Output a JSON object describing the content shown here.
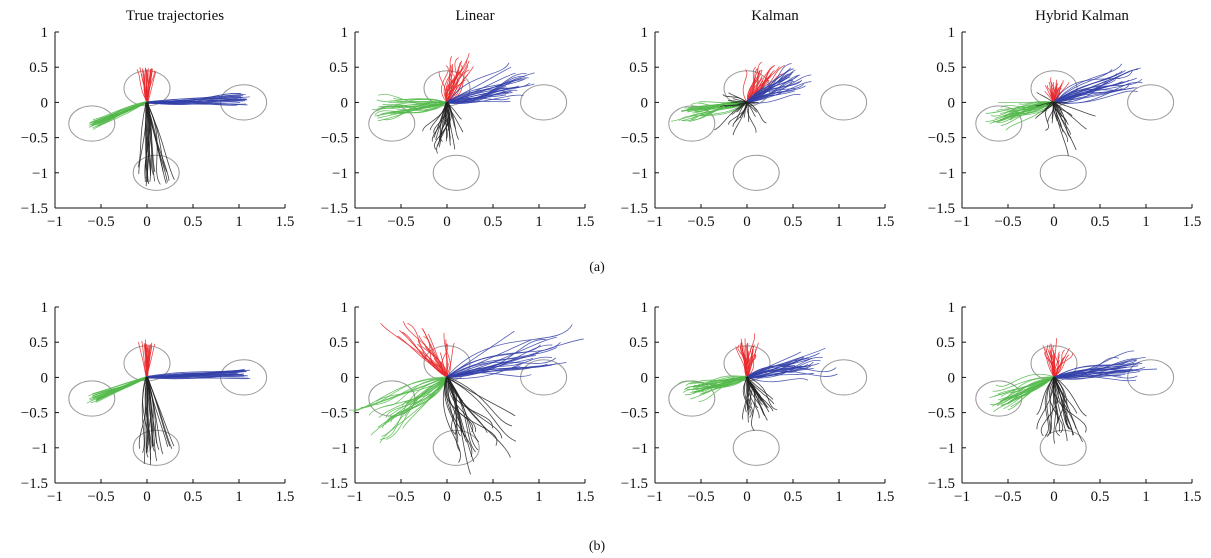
{
  "figure": {
    "row_labels": [
      "(a)",
      "(b)"
    ]
  },
  "chart_data": [
    {
      "type": "line",
      "row": "(a)",
      "title": "True trajectories",
      "style": "true",
      "xlim": [
        -1,
        1.5
      ],
      "ylim": [
        -1.5,
        1
      ],
      "xticks": [
        "−1",
        "−0.5",
        "0",
        "0.5",
        "1",
        "1.5"
      ],
      "yticks": [
        "1",
        "0.5",
        "0",
        "−0.5",
        "−1",
        "−1.5"
      ],
      "targets": [
        {
          "x": 0,
          "y": 0.2
        },
        {
          "x": 1.05,
          "y": 0
        },
        {
          "x": -0.6,
          "y": -0.3
        },
        {
          "x": 0.1,
          "y": -1
        }
      ],
      "target_radius": 0.25,
      "series": [
        {
          "color": "#e8282b",
          "end": [
            0,
            0.45
          ],
          "spread": 0.12
        },
        {
          "color": "#3340a8",
          "end": [
            1.05,
            0.05
          ],
          "spread": 0.12
        },
        {
          "color": "#52b84a",
          "end": [
            -0.6,
            -0.3
          ],
          "spread": 0.1
        },
        {
          "color": "#222222",
          "end": [
            0.1,
            -1.05
          ],
          "spread": 0.25
        }
      ]
    },
    {
      "type": "line",
      "row": "(a)",
      "title": "Linear",
      "style": "noisy",
      "xlim": [
        -1,
        1.5
      ],
      "ylim": [
        -1.5,
        1
      ],
      "xticks": [
        "−1",
        "−0.5",
        "0",
        "0.5",
        "1",
        "1.5"
      ],
      "yticks": [
        "1",
        "0.5",
        "0",
        "−0.5",
        "−1",
        "−1.5"
      ],
      "targets": [
        {
          "x": 0,
          "y": 0.2
        },
        {
          "x": 1.05,
          "y": 0
        },
        {
          "x": -0.6,
          "y": -0.3
        },
        {
          "x": 0.1,
          "y": -1
        }
      ],
      "target_radius": 0.25,
      "series": [
        {
          "color": "#e8282b",
          "end": [
            0.1,
            0.5
          ],
          "spread": 0.25
        },
        {
          "color": "#3340a8",
          "end": [
            0.8,
            0.25
          ],
          "spread": 0.35
        },
        {
          "color": "#52b84a",
          "end": [
            -0.7,
            -0.1
          ],
          "spread": 0.25
        },
        {
          "color": "#222222",
          "end": [
            0.0,
            -0.5
          ],
          "spread": 0.35
        }
      ]
    },
    {
      "type": "line",
      "row": "(a)",
      "title": "Kalman",
      "style": "noisy",
      "xlim": [
        -1,
        1.5
      ],
      "ylim": [
        -1.5,
        1
      ],
      "xticks": [
        "−1",
        "−0.5",
        "0",
        "0.5",
        "1",
        "1.5"
      ],
      "yticks": [
        "1",
        "0.5",
        "0",
        "−0.5",
        "−1",
        "−1.5"
      ],
      "targets": [
        {
          "x": 0,
          "y": 0.2
        },
        {
          "x": 1.05,
          "y": 0
        },
        {
          "x": -0.6,
          "y": -0.3
        },
        {
          "x": 0.1,
          "y": -1
        }
      ],
      "target_radius": 0.25,
      "series": [
        {
          "color": "#e8282b",
          "end": [
            0.2,
            0.45
          ],
          "spread": 0.25
        },
        {
          "color": "#3340a8",
          "end": [
            0.55,
            0.35
          ],
          "spread": 0.3
        },
        {
          "color": "#52b84a",
          "end": [
            -0.6,
            -0.15
          ],
          "spread": 0.25
        },
        {
          "color": "#222222",
          "end": [
            -0.1,
            -0.15
          ],
          "spread": 0.45
        }
      ]
    },
    {
      "type": "line",
      "row": "(a)",
      "title": "Hybrid Kalman",
      "style": "noisy",
      "xlim": [
        -1,
        1.5
      ],
      "ylim": [
        -1.5,
        1
      ],
      "xticks": [
        "−1",
        "−0.5",
        "0",
        "0.5",
        "1",
        "1.5"
      ],
      "yticks": [
        "1",
        "0.5",
        "0",
        "−0.5",
        "−1",
        "−1.5"
      ],
      "targets": [
        {
          "x": 0,
          "y": 0.2
        },
        {
          "x": 1.05,
          "y": 0
        },
        {
          "x": -0.6,
          "y": -0.3
        },
        {
          "x": 0.1,
          "y": -1
        }
      ],
      "target_radius": 0.25,
      "series": [
        {
          "color": "#e8282b",
          "end": [
            0.0,
            0.25
          ],
          "spread": 0.2
        },
        {
          "color": "#3340a8",
          "end": [
            0.8,
            0.35
          ],
          "spread": 0.35
        },
        {
          "color": "#52b84a",
          "end": [
            -0.6,
            -0.2
          ],
          "spread": 0.3
        },
        {
          "color": "#222222",
          "end": [
            0.0,
            -0.3
          ],
          "spread": 0.55
        }
      ]
    },
    {
      "type": "line",
      "row": "(b)",
      "title": "",
      "style": "true",
      "xlim": [
        -1,
        1.5
      ],
      "ylim": [
        -1.5,
        1
      ],
      "xticks": [
        "−1",
        "−0.5",
        "0",
        "0.5",
        "1",
        "1.5"
      ],
      "yticks": [
        "1",
        "0.5",
        "0",
        "−0.5",
        "−1",
        "−1.5"
      ],
      "targets": [
        {
          "x": 0,
          "y": 0.2
        },
        {
          "x": 1.05,
          "y": 0
        },
        {
          "x": -0.6,
          "y": -0.3
        },
        {
          "x": 0.1,
          "y": -1
        }
      ],
      "target_radius": 0.25,
      "series": [
        {
          "color": "#e8282b",
          "end": [
            0,
            0.45
          ],
          "spread": 0.12
        },
        {
          "color": "#3340a8",
          "end": [
            1.05,
            0.05
          ],
          "spread": 0.12
        },
        {
          "color": "#52b84a",
          "end": [
            -0.6,
            -0.3
          ],
          "spread": 0.1
        },
        {
          "color": "#222222",
          "end": [
            0.1,
            -1.05
          ],
          "spread": 0.25
        }
      ]
    },
    {
      "type": "line",
      "row": "(b)",
      "title": "",
      "style": "noisy",
      "xlim": [
        -1,
        1.5
      ],
      "ylim": [
        -1.5,
        1
      ],
      "xticks": [
        "−1",
        "−0.5",
        "0",
        "0.5",
        "1",
        "1.5"
      ],
      "yticks": [
        "1",
        "0.5",
        "0",
        "−0.5",
        "−1",
        "−1.5"
      ],
      "targets": [
        {
          "x": 0,
          "y": 0.2
        },
        {
          "x": 1.05,
          "y": 0
        },
        {
          "x": -0.6,
          "y": -0.3
        },
        {
          "x": 0.1,
          "y": -1
        }
      ],
      "target_radius": 0.25,
      "series": [
        {
          "color": "#e8282b",
          "end": [
            -0.2,
            0.5
          ],
          "spread": 0.55
        },
        {
          "color": "#3340a8",
          "end": [
            1.0,
            0.35
          ],
          "spread": 0.55
        },
        {
          "color": "#52b84a",
          "end": [
            -0.7,
            -0.6
          ],
          "spread": 0.45
        },
        {
          "color": "#222222",
          "end": [
            0.4,
            -0.9
          ],
          "spread": 0.6
        }
      ]
    },
    {
      "type": "line",
      "row": "(b)",
      "title": "",
      "style": "noisy",
      "xlim": [
        -1,
        1.5
      ],
      "ylim": [
        -1.5,
        1
      ],
      "xticks": [
        "−1",
        "−0.5",
        "0",
        "0.5",
        "1",
        "1.5"
      ],
      "yticks": [
        "1",
        "0.5",
        "0",
        "−0.5",
        "−1",
        "−1.5"
      ],
      "targets": [
        {
          "x": 0,
          "y": 0.2
        },
        {
          "x": 1.05,
          "y": 0
        },
        {
          "x": -0.6,
          "y": -0.3
        },
        {
          "x": 0.1,
          "y": -1
        }
      ],
      "target_radius": 0.25,
      "series": [
        {
          "color": "#e8282b",
          "end": [
            0.0,
            0.45
          ],
          "spread": 0.2
        },
        {
          "color": "#3340a8",
          "end": [
            0.7,
            0.2
          ],
          "spread": 0.3
        },
        {
          "color": "#52b84a",
          "end": [
            -0.6,
            -0.2
          ],
          "spread": 0.2
        },
        {
          "color": "#222222",
          "end": [
            0.1,
            -0.5
          ],
          "spread": 0.35
        }
      ]
    },
    {
      "type": "line",
      "row": "(b)",
      "title": "",
      "style": "noisy",
      "xlim": [
        -1,
        1.5
      ],
      "ylim": [
        -1.5,
        1
      ],
      "xticks": [
        "−1",
        "−0.5",
        "0",
        "0.5",
        "1",
        "1.5"
      ],
      "yticks": [
        "1",
        "0.5",
        "0",
        "−0.5",
        "−1",
        "−1.5"
      ],
      "targets": [
        {
          "x": 0,
          "y": 0.2
        },
        {
          "x": 1.05,
          "y": 0
        },
        {
          "x": -0.6,
          "y": -0.3
        },
        {
          "x": 0.1,
          "y": -1
        }
      ],
      "target_radius": 0.25,
      "series": [
        {
          "color": "#e8282b",
          "end": [
            0.0,
            0.35
          ],
          "spread": 0.25
        },
        {
          "color": "#3340a8",
          "end": [
            0.9,
            0.15
          ],
          "spread": 0.3
        },
        {
          "color": "#52b84a",
          "end": [
            -0.6,
            -0.3
          ],
          "spread": 0.25
        },
        {
          "color": "#222222",
          "end": [
            0.1,
            -0.7
          ],
          "spread": 0.45
        }
      ]
    }
  ]
}
